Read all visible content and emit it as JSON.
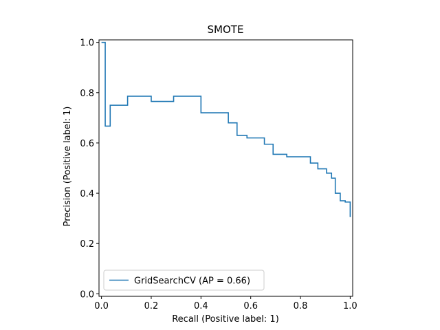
{
  "chart_data": {
    "type": "line",
    "step": "post",
    "title": "SMOTE",
    "xlabel": "Recall (Positive label: 1)",
    "ylabel": "Precision (Positive label: 1)",
    "xlim": [
      -0.01,
      1.01
    ],
    "ylim": [
      -0.01,
      1.01
    ],
    "xticks": [
      0.0,
      0.2,
      0.4,
      0.6,
      0.8,
      1.0
    ],
    "xtick_labels": [
      "0.0",
      "0.2",
      "0.4",
      "0.6",
      "0.8",
      "1.0"
    ],
    "yticks": [
      0.0,
      0.2,
      0.4,
      0.6,
      0.8,
      1.0
    ],
    "ytick_labels": [
      "0.0",
      "0.2",
      "0.4",
      "0.6",
      "0.8",
      "1.0"
    ],
    "grid": false,
    "legend_position": "lower-left",
    "series": [
      {
        "name": "GridSearchCV (AP = 0.66)",
        "color": "#1f77b4",
        "points": [
          [
            0.0,
            1.0
          ],
          [
            0.015,
            1.0
          ],
          [
            0.015,
            0.667
          ],
          [
            0.035,
            0.667
          ],
          [
            0.035,
            0.75
          ],
          [
            0.105,
            0.75
          ],
          [
            0.105,
            0.786
          ],
          [
            0.2,
            0.786
          ],
          [
            0.2,
            0.765
          ],
          [
            0.29,
            0.765
          ],
          [
            0.29,
            0.786
          ],
          [
            0.4,
            0.786
          ],
          [
            0.4,
            0.72
          ],
          [
            0.51,
            0.72
          ],
          [
            0.51,
            0.68
          ],
          [
            0.545,
            0.68
          ],
          [
            0.545,
            0.63
          ],
          [
            0.585,
            0.63
          ],
          [
            0.585,
            0.62
          ],
          [
            0.655,
            0.62
          ],
          [
            0.655,
            0.595
          ],
          [
            0.69,
            0.595
          ],
          [
            0.69,
            0.555
          ],
          [
            0.745,
            0.555
          ],
          [
            0.745,
            0.545
          ],
          [
            0.84,
            0.545
          ],
          [
            0.84,
            0.52
          ],
          [
            0.87,
            0.52
          ],
          [
            0.87,
            0.497
          ],
          [
            0.905,
            0.497
          ],
          [
            0.905,
            0.48
          ],
          [
            0.925,
            0.48
          ],
          [
            0.925,
            0.46
          ],
          [
            0.94,
            0.46
          ],
          [
            0.94,
            0.4
          ],
          [
            0.96,
            0.4
          ],
          [
            0.96,
            0.37
          ],
          [
            0.98,
            0.37
          ],
          [
            0.98,
            0.365
          ],
          [
            1.0,
            0.365
          ],
          [
            1.0,
            0.305
          ]
        ]
      }
    ]
  }
}
